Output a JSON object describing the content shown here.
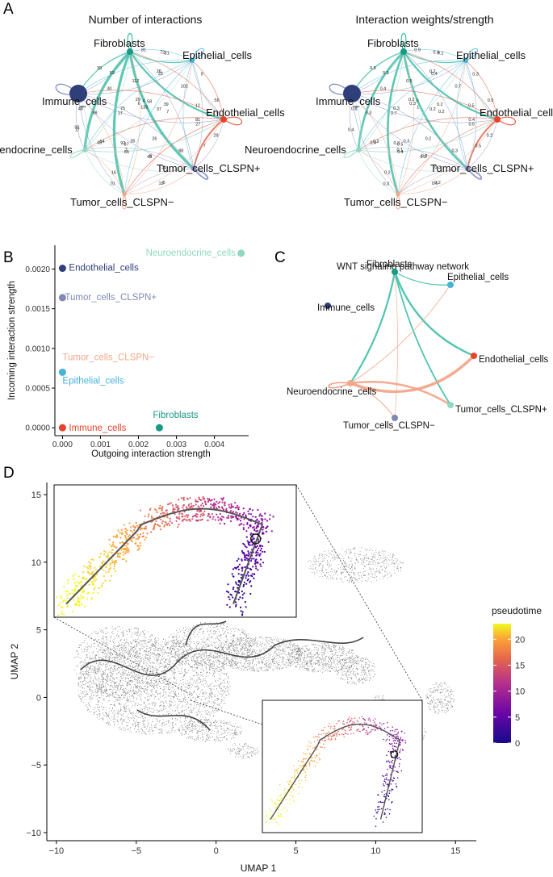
{
  "panels": {
    "a": {
      "letter": "A",
      "left_title": "Number of interactions",
      "right_title": "Interaction weights/strength",
      "left_labels": {
        "n0": "Fibroblasts",
        "n1": "Epithelial_cells",
        "n2": "Immune_cells",
        "n3": "Endothelial_cells",
        "n4": "Neuroendocrine_cells",
        "n5": "Tumor_cells_CLSPN+",
        "n6": "Tumor_cells_CLSPN−"
      },
      "right_labels": {
        "n0": "Fibroblasts",
        "n1": "Epithelial_cells",
        "n2": "Immune_cells",
        "n3": "Endothelial_cells",
        "n4": "Neuroendocrine_cells",
        "n5": "Tumor_cells_CLSPN+",
        "n6": "Tumor_cells_CLSPN−"
      },
      "left_edge_labels": [
        "81",
        "7",
        "27",
        "17",
        "4",
        "135",
        "37",
        "5",
        "16",
        "30",
        "9",
        "22",
        "26",
        "35",
        "5",
        "7",
        "54",
        "53",
        "72",
        "7",
        "17",
        "92",
        "48",
        "12",
        "75",
        "18",
        "39",
        "6",
        "29",
        "56",
        "98",
        "70",
        "65",
        "88",
        "101",
        "112",
        "39",
        "49",
        "29",
        "35",
        "26",
        "49",
        "81",
        "87",
        "81",
        "92",
        "58"
      ],
      "right_edge_labels": [
        "0.9",
        "0.1",
        "0.6",
        "0.4",
        "0",
        "1",
        "0.2",
        "0.2",
        "0.2",
        "0.4",
        "0.3",
        "0.4",
        "0.2",
        "0.3",
        "0.3",
        "0.5",
        "0.2",
        "0.3",
        "0.4",
        "0.2",
        "0.7",
        "0.3",
        "0.8",
        "0.5",
        "0.3",
        "0.6",
        "0.2",
        "0.3",
        "0.2",
        "0.5",
        "0.3",
        "0.3",
        "0.4",
        "0.3",
        "0.7",
        "0.5",
        "0.5",
        "0.4",
        "0.2",
        "0.3",
        "0.2",
        "0.2",
        "0.1",
        "0.5",
        "0.4"
      ]
    },
    "b": {
      "letter": "B",
      "chart_data": {
        "type": "scatter",
        "xlabel": "Outgoing interaction strength",
        "ylabel": "Incoming interaction strength",
        "xlim": [
          -0.0002,
          0.0049
        ],
        "ylim": [
          -0.0001,
          0.0023
        ],
        "x_ticks": [
          0.0,
          0.001,
          0.002,
          0.003,
          0.004
        ],
        "x_tick_labels": [
          "0.000",
          "0.001",
          "0.002",
          "0.003",
          "0.004"
        ],
        "y_ticks": [
          0.0,
          0.0005,
          0.001,
          0.0015,
          0.002
        ],
        "y_tick_labels": [
          "0.0000",
          "0.0005",
          "0.0010",
          "0.0015",
          "0.0020"
        ],
        "points": [
          {
            "label": "Neuroendocrine_cells",
            "x": 0.0047,
            "y": 0.0022,
            "color": "#8fd8c2",
            "label_dx": -118,
            "label_dy": 3
          },
          {
            "label": "Endothelial_cells",
            "x": 0.0,
            "y": 0.00201,
            "color": "#2e3f7a",
            "label_dx": 8,
            "label_dy": 3
          },
          {
            "label": "Tumor_cells_CLSPN+",
            "x": 0.0,
            "y": 0.00164,
            "color": "#7f89b5",
            "label_dx": 3,
            "label_dy": 3
          },
          {
            "label": "Tumor_cells_CLSPN−",
            "x": 0.0,
            "y": 0.0007,
            "color": "#f0a88a",
            "label_dx": 0,
            "label_dy": -15
          },
          {
            "label": "Epithelial_cells",
            "x": 0.0,
            "y": 0.0007,
            "color": "#44b3d8",
            "label_dx": 0,
            "label_dy": 14
          },
          {
            "label": "Fibroblasts",
            "x": 0.00255,
            "y": 0.0,
            "color": "#1a9984",
            "label_dx": -8,
            "label_dy": -12
          },
          {
            "label": "Immune_cells",
            "x": 0.0,
            "y": 0.0,
            "color": "#e8432a",
            "label_dx": 8,
            "label_dy": 4
          }
        ]
      }
    },
    "c": {
      "letter": "C",
      "title": "WNT signaling pathway network",
      "labels": {
        "n0": "Fibroblasts",
        "n1": "Epithelial_cells",
        "n2": "Immune_cells",
        "n3": "Endothelial_cells",
        "n4": "Neuroendocrine_cells",
        "n5": "Tumor_cells_CLSPN+",
        "n6": "Tumor_cells_CLSPN−"
      }
    },
    "d": {
      "letter": "D",
      "chart_data": {
        "type": "scatter",
        "xlabel": "UMAP 1",
        "ylabel": "UMAP 2",
        "xlim": [
          -10.6,
          16.3
        ],
        "ylim": [
          -10.6,
          15.9
        ],
        "x_ticks": [
          -10,
          -5,
          0,
          5,
          10,
          15
        ],
        "x_tick_labels": [
          "−10",
          "−5",
          "0",
          "5",
          "10",
          "15"
        ],
        "y_ticks": [
          -10,
          -5,
          0,
          5,
          10,
          15
        ],
        "y_tick_labels": [
          "−10",
          "−5",
          "0",
          "5",
          "10",
          "15"
        ],
        "legend": {
          "title": "pseudotime",
          "ticks": [
            0,
            5,
            10,
            15,
            20
          ],
          "tick_labels": [
            "0",
            "5",
            "10",
            "15",
            "20"
          ],
          "range": [
            0,
            23
          ]
        }
      }
    }
  }
}
